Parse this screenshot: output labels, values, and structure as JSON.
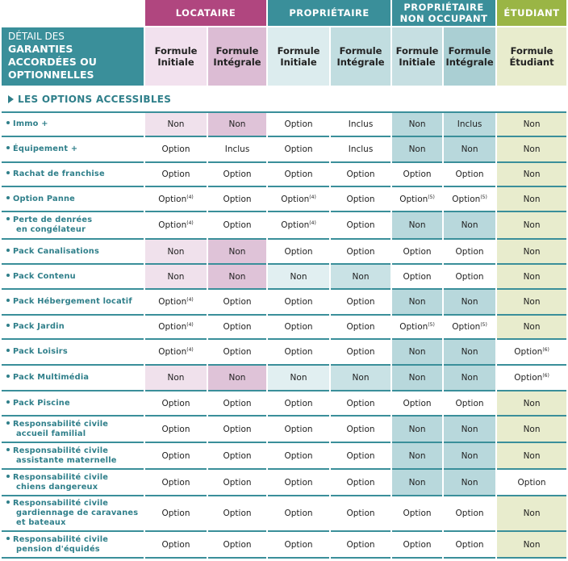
{
  "groups": {
    "locataire": "LOCATAIRE",
    "proprietaire": "PROPRIÉTAIRE",
    "pno_line1": "PROPRIÉTAIRE",
    "pno_line2": "NON OCCUPANT",
    "etudiant": "ÉTUDIANT"
  },
  "detail": {
    "line1": "DÉTAIL DES",
    "line2": "GARANTIES",
    "line3": "ACCORDÉES OU",
    "line4": "OPTIONNELLES"
  },
  "formulas": {
    "f1a": "Formule",
    "f1b": "Initiale",
    "f2a": "Formule",
    "f2b": "Intégrale",
    "f3a": "Formule",
    "f3b": "Initiale",
    "f4a": "Formule",
    "f4b": "Intégrale",
    "f5a": "Formule",
    "f5b": "Initiale",
    "f6a": "Formule",
    "f6b": "Intégrale",
    "f7a": "Formule",
    "f7b": "Étudiant"
  },
  "section_title": "LES OPTIONS ACCESSIBLES",
  "colors": {
    "teal": "#3a8f9a",
    "magenta": "#b0467f",
    "green": "#9ab545",
    "non_red": "#c23b3b"
  },
  "rows": [
    {
      "label1": "Immo +",
      "label2": "",
      "cells": [
        {
          "v": "Non"
        },
        {
          "v": "Non"
        },
        {
          "v": "Option"
        },
        {
          "v": "Inclus"
        },
        {
          "v": "Non"
        },
        {
          "v": "Inclus"
        },
        {
          "v": "Non"
        }
      ]
    },
    {
      "label1": "Équipement +",
      "label2": "",
      "cells": [
        {
          "v": "Option"
        },
        {
          "v": "Inclus"
        },
        {
          "v": "Option"
        },
        {
          "v": "Inclus"
        },
        {
          "v": "Non"
        },
        {
          "v": "Non"
        },
        {
          "v": "Non"
        }
      ]
    },
    {
      "label1": "Rachat de franchise",
      "label2": "",
      "cells": [
        {
          "v": "Option"
        },
        {
          "v": "Option"
        },
        {
          "v": "Option"
        },
        {
          "v": "Option"
        },
        {
          "v": "Option"
        },
        {
          "v": "Option"
        },
        {
          "v": "Non"
        }
      ]
    },
    {
      "label1": "Option Panne",
      "label2": "",
      "cells": [
        {
          "v": "Option",
          "s": "(4)"
        },
        {
          "v": "Option"
        },
        {
          "v": "Option",
          "s": "(4)"
        },
        {
          "v": "Option"
        },
        {
          "v": "Option",
          "s": "(5)"
        },
        {
          "v": "Option",
          "s": "(5)"
        },
        {
          "v": "Non"
        }
      ]
    },
    {
      "label1": "Perte de denrées",
      "label2": "en congélateur",
      "cells": [
        {
          "v": "Option",
          "s": "(4)"
        },
        {
          "v": "Option"
        },
        {
          "v": "Option",
          "s": "(4)"
        },
        {
          "v": "Option"
        },
        {
          "v": "Non"
        },
        {
          "v": "Non"
        },
        {
          "v": "Non"
        }
      ]
    },
    {
      "label1": "Pack Canalisations",
      "label2": "",
      "cells": [
        {
          "v": "Non"
        },
        {
          "v": "Non"
        },
        {
          "v": "Option"
        },
        {
          "v": "Option"
        },
        {
          "v": "Option"
        },
        {
          "v": "Option"
        },
        {
          "v": "Non"
        }
      ]
    },
    {
      "label1": "Pack Contenu",
      "label2": "",
      "cells": [
        {
          "v": "Non"
        },
        {
          "v": "Non"
        },
        {
          "v": "Non"
        },
        {
          "v": "Non"
        },
        {
          "v": "Option"
        },
        {
          "v": "Option"
        },
        {
          "v": "Non"
        }
      ]
    },
    {
      "label1": "Pack Hébergement locatif",
      "label2": "",
      "cells": [
        {
          "v": "Option",
          "s": "(4)"
        },
        {
          "v": "Option"
        },
        {
          "v": "Option"
        },
        {
          "v": "Option"
        },
        {
          "v": "Non"
        },
        {
          "v": "Non"
        },
        {
          "v": "Non"
        }
      ]
    },
    {
      "label1": "Pack Jardin",
      "label2": "",
      "cells": [
        {
          "v": "Option",
          "s": "(4)"
        },
        {
          "v": "Option"
        },
        {
          "v": "Option"
        },
        {
          "v": "Option"
        },
        {
          "v": "Option",
          "s": "(5)"
        },
        {
          "v": "Option",
          "s": "(5)"
        },
        {
          "v": "Non"
        }
      ]
    },
    {
      "label1": "Pack Loisirs",
      "label2": "",
      "cells": [
        {
          "v": "Option",
          "s": "(4)"
        },
        {
          "v": "Option"
        },
        {
          "v": "Option"
        },
        {
          "v": "Option"
        },
        {
          "v": "Non"
        },
        {
          "v": "Non"
        },
        {
          "v": "Option",
          "s": "(6)"
        }
      ]
    },
    {
      "label1": "Pack Multimédia",
      "label2": "",
      "cells": [
        {
          "v": "Non"
        },
        {
          "v": "Non"
        },
        {
          "v": "Non"
        },
        {
          "v": "Non"
        },
        {
          "v": "Non"
        },
        {
          "v": "Non"
        },
        {
          "v": "Option",
          "s": "(6)"
        }
      ]
    },
    {
      "label1": "Pack Piscine",
      "label2": "",
      "cells": [
        {
          "v": "Option"
        },
        {
          "v": "Option"
        },
        {
          "v": "Option"
        },
        {
          "v": "Option"
        },
        {
          "v": "Option"
        },
        {
          "v": "Option"
        },
        {
          "v": "Non"
        }
      ]
    },
    {
      "label1": "Responsabilité civile",
      "label2": "accueil familial",
      "cells": [
        {
          "v": "Option"
        },
        {
          "v": "Option"
        },
        {
          "v": "Option"
        },
        {
          "v": "Option"
        },
        {
          "v": "Non"
        },
        {
          "v": "Non"
        },
        {
          "v": "Non"
        }
      ]
    },
    {
      "label1": "Responsabilité civile",
      "label2": "assistante maternelle",
      "cells": [
        {
          "v": "Option"
        },
        {
          "v": "Option"
        },
        {
          "v": "Option"
        },
        {
          "v": "Option"
        },
        {
          "v": "Non"
        },
        {
          "v": "Non"
        },
        {
          "v": "Non"
        }
      ]
    },
    {
      "label1": "Responsabilité civile",
      "label2": "chiens dangereux",
      "cells": [
        {
          "v": "Option"
        },
        {
          "v": "Option"
        },
        {
          "v": "Option"
        },
        {
          "v": "Option"
        },
        {
          "v": "Non"
        },
        {
          "v": "Non"
        },
        {
          "v": "Option"
        }
      ]
    },
    {
      "label1": "Responsabilité civile",
      "label2": "gardiennage de caravanes",
      "label3": "et bateaux",
      "cells": [
        {
          "v": "Option"
        },
        {
          "v": "Option"
        },
        {
          "v": "Option"
        },
        {
          "v": "Option"
        },
        {
          "v": "Option"
        },
        {
          "v": "Option"
        },
        {
          "v": "Non"
        }
      ]
    },
    {
      "label1": "Responsabilité civile",
      "label2": "pension d'équidés",
      "cells": [
        {
          "v": "Option"
        },
        {
          "v": "Option"
        },
        {
          "v": "Option"
        },
        {
          "v": "Option"
        },
        {
          "v": "Option"
        },
        {
          "v": "Option"
        },
        {
          "v": "Non"
        }
      ]
    }
  ]
}
